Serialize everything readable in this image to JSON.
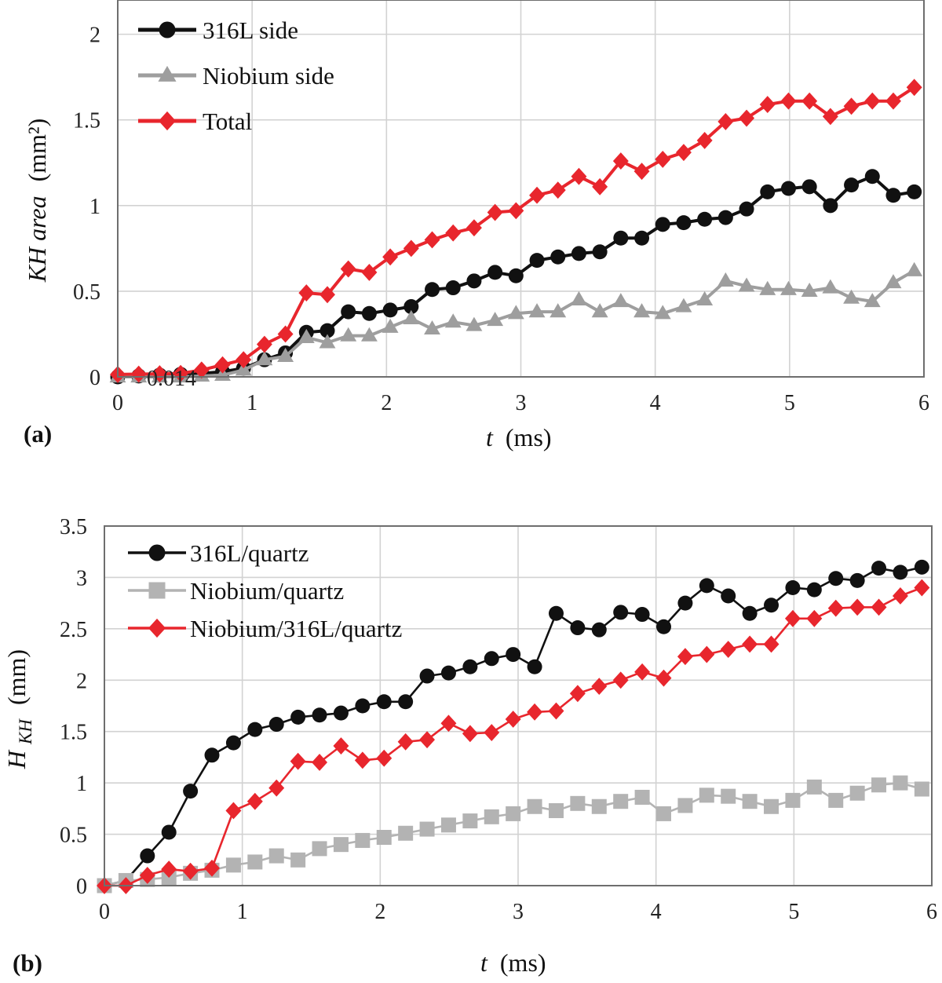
{
  "chart_data": [
    {
      "type": "line",
      "panel_label": "(a)",
      "xlabel": "t",
      "xlabel_unit": "(ms)",
      "ylabel": "KH area",
      "ylabel_unit": "(mm²)",
      "xlim": [
        0,
        6
      ],
      "ylim": [
        0,
        2.2
      ],
      "xticks": [
        0,
        1,
        2,
        3,
        4,
        5,
        6
      ],
      "yticks": [
        0,
        0.5,
        1,
        1.5,
        2
      ],
      "grid": true,
      "legend_position": "top-left",
      "annotation": "0.014",
      "series": [
        {
          "name": "316L side",
          "color": "#111111",
          "marker": "circle",
          "x": [
            0,
            0.156,
            0.312,
            0.468,
            0.624,
            0.78,
            0.936,
            1.092,
            1.248,
            1.404,
            1.56,
            1.716,
            1.872,
            2.028,
            2.184,
            2.34,
            2.496,
            2.652,
            2.808,
            2.964,
            3.12,
            3.276,
            3.432,
            3.588,
            3.744,
            3.9,
            4.056,
            4.212,
            4.368,
            4.524,
            4.68,
            4.836,
            4.992,
            5.148,
            5.304,
            5.46,
            5.616,
            5.772,
            5.928
          ],
          "values": [
            0.0,
            0.005,
            0.01,
            0.015,
            0.02,
            0.03,
            0.05,
            0.1,
            0.14,
            0.26,
            0.27,
            0.38,
            0.37,
            0.39,
            0.41,
            0.51,
            0.52,
            0.56,
            0.61,
            0.59,
            0.68,
            0.7,
            0.72,
            0.73,
            0.81,
            0.81,
            0.89,
            0.9,
            0.92,
            0.93,
            0.98,
            1.08,
            1.1,
            1.11,
            1.0,
            1.12,
            1.17,
            1.06,
            1.08
          ]
        },
        {
          "name": "Niobium side",
          "color": "#9e9e9e",
          "marker": "triangle",
          "x": [
            0,
            0.156,
            0.312,
            0.468,
            0.624,
            0.78,
            0.936,
            1.092,
            1.248,
            1.404,
            1.56,
            1.716,
            1.872,
            2.028,
            2.184,
            2.34,
            2.496,
            2.652,
            2.808,
            2.964,
            3.12,
            3.276,
            3.432,
            3.588,
            3.744,
            3.9,
            4.056,
            4.212,
            4.368,
            4.524,
            4.68,
            4.836,
            4.992,
            5.148,
            5.304,
            5.46,
            5.616,
            5.772,
            5.928
          ],
          "values": [
            0.0,
            0.0,
            0.0,
            0.0,
            0.005,
            0.01,
            0.04,
            0.1,
            0.12,
            0.23,
            0.2,
            0.24,
            0.24,
            0.29,
            0.34,
            0.28,
            0.32,
            0.3,
            0.33,
            0.37,
            0.38,
            0.38,
            0.45,
            0.38,
            0.44,
            0.38,
            0.37,
            0.41,
            0.45,
            0.56,
            0.53,
            0.51,
            0.51,
            0.5,
            0.52,
            0.46,
            0.44,
            0.55,
            0.62
          ]
        },
        {
          "name": "Total",
          "color": "#e8262d",
          "marker": "diamond",
          "x": [
            0,
            0.156,
            0.312,
            0.468,
            0.624,
            0.78,
            0.936,
            1.092,
            1.248,
            1.404,
            1.56,
            1.716,
            1.872,
            2.028,
            2.184,
            2.34,
            2.496,
            2.652,
            2.808,
            2.964,
            3.12,
            3.276,
            3.432,
            3.588,
            3.744,
            3.9,
            4.056,
            4.212,
            4.368,
            4.524,
            4.68,
            4.836,
            4.992,
            5.148,
            5.304,
            5.46,
            5.616,
            5.772,
            5.928
          ],
          "values": [
            0.014,
            0.016,
            0.018,
            0.02,
            0.04,
            0.07,
            0.1,
            0.19,
            0.25,
            0.49,
            0.48,
            0.63,
            0.61,
            0.7,
            0.75,
            0.8,
            0.84,
            0.87,
            0.96,
            0.97,
            1.06,
            1.09,
            1.17,
            1.11,
            1.26,
            1.2,
            1.27,
            1.31,
            1.38,
            1.49,
            1.51,
            1.59,
            1.61,
            1.61,
            1.52,
            1.58,
            1.61,
            1.61,
            1.69
          ]
        }
      ]
    },
    {
      "type": "line",
      "panel_label": "(b)",
      "xlabel": "t",
      "xlabel_unit": "(ms)",
      "ylabel": "H",
      "ylabel_sub": "KH",
      "ylabel_unit": "(mm)",
      "xlim": [
        0,
        6
      ],
      "ylim": [
        0,
        3.5
      ],
      "xticks": [
        0,
        1,
        2,
        3,
        4,
        5,
        6
      ],
      "yticks": [
        0,
        0.5,
        1,
        1.5,
        2,
        2.5,
        3,
        3.5
      ],
      "grid": true,
      "legend_position": "top-left",
      "series": [
        {
          "name": "316L/quartz",
          "color": "#111111",
          "marker": "circle",
          "x": [
            0,
            0.156,
            0.312,
            0.468,
            0.624,
            0.78,
            0.936,
            1.092,
            1.248,
            1.404,
            1.56,
            1.716,
            1.872,
            2.028,
            2.184,
            2.34,
            2.496,
            2.652,
            2.808,
            2.964,
            3.12,
            3.276,
            3.432,
            3.588,
            3.744,
            3.9,
            4.056,
            4.212,
            4.368,
            4.524,
            4.68,
            4.836,
            4.992,
            5.148,
            5.304,
            5.46,
            5.616,
            5.772,
            5.928
          ],
          "values": [
            0.0,
            0.05,
            0.29,
            0.52,
            0.92,
            1.27,
            1.39,
            1.52,
            1.57,
            1.64,
            1.66,
            1.68,
            1.75,
            1.79,
            1.79,
            2.04,
            2.07,
            2.13,
            2.21,
            2.25,
            2.13,
            2.65,
            2.51,
            2.49,
            2.66,
            2.64,
            2.52,
            2.75,
            2.92,
            2.82,
            2.65,
            2.73,
            2.9,
            2.88,
            2.99,
            2.97,
            3.09,
            3.05,
            3.1
          ]
        },
        {
          "name": "Niobium/quartz",
          "color": "#b3b3b3",
          "marker": "square",
          "x": [
            0,
            0.156,
            0.312,
            0.468,
            0.624,
            0.78,
            0.936,
            1.092,
            1.248,
            1.404,
            1.56,
            1.716,
            1.872,
            2.028,
            2.184,
            2.34,
            2.496,
            2.652,
            2.808,
            2.964,
            3.12,
            3.276,
            3.432,
            3.588,
            3.744,
            3.9,
            4.056,
            4.212,
            4.368,
            4.524,
            4.68,
            4.836,
            4.992,
            5.148,
            5.304,
            5.46,
            5.616,
            5.772,
            5.928
          ],
          "values": [
            0.0,
            0.05,
            0.06,
            0.08,
            0.12,
            0.15,
            0.2,
            0.23,
            0.29,
            0.25,
            0.36,
            0.4,
            0.44,
            0.47,
            0.51,
            0.55,
            0.59,
            0.63,
            0.67,
            0.7,
            0.77,
            0.73,
            0.8,
            0.77,
            0.82,
            0.86,
            0.7,
            0.78,
            0.88,
            0.87,
            0.82,
            0.77,
            0.83,
            0.96,
            0.83,
            0.9,
            0.98,
            1.0,
            0.94
          ]
        },
        {
          "name": "Niobium/316L/quartz",
          "color": "#e8262d",
          "marker": "diamond",
          "x": [
            0,
            0.156,
            0.312,
            0.468,
            0.624,
            0.78,
            0.936,
            1.092,
            1.248,
            1.404,
            1.56,
            1.716,
            1.872,
            2.028,
            2.184,
            2.34,
            2.496,
            2.652,
            2.808,
            2.964,
            3.12,
            3.276,
            3.432,
            3.588,
            3.744,
            3.9,
            4.056,
            4.212,
            4.368,
            4.524,
            4.68,
            4.836,
            4.992,
            5.148,
            5.304,
            5.46,
            5.616,
            5.772,
            5.928
          ],
          "values": [
            0.0,
            0.0,
            0.1,
            0.16,
            0.14,
            0.17,
            0.73,
            0.82,
            0.95,
            1.21,
            1.2,
            1.36,
            1.22,
            1.24,
            1.4,
            1.42,
            1.58,
            1.48,
            1.49,
            1.62,
            1.69,
            1.7,
            1.87,
            1.94,
            2.0,
            2.08,
            2.02,
            2.23,
            2.25,
            2.3,
            2.35,
            2.35,
            2.6,
            2.6,
            2.7,
            2.71,
            2.71,
            2.82,
            2.9
          ]
        }
      ]
    }
  ]
}
